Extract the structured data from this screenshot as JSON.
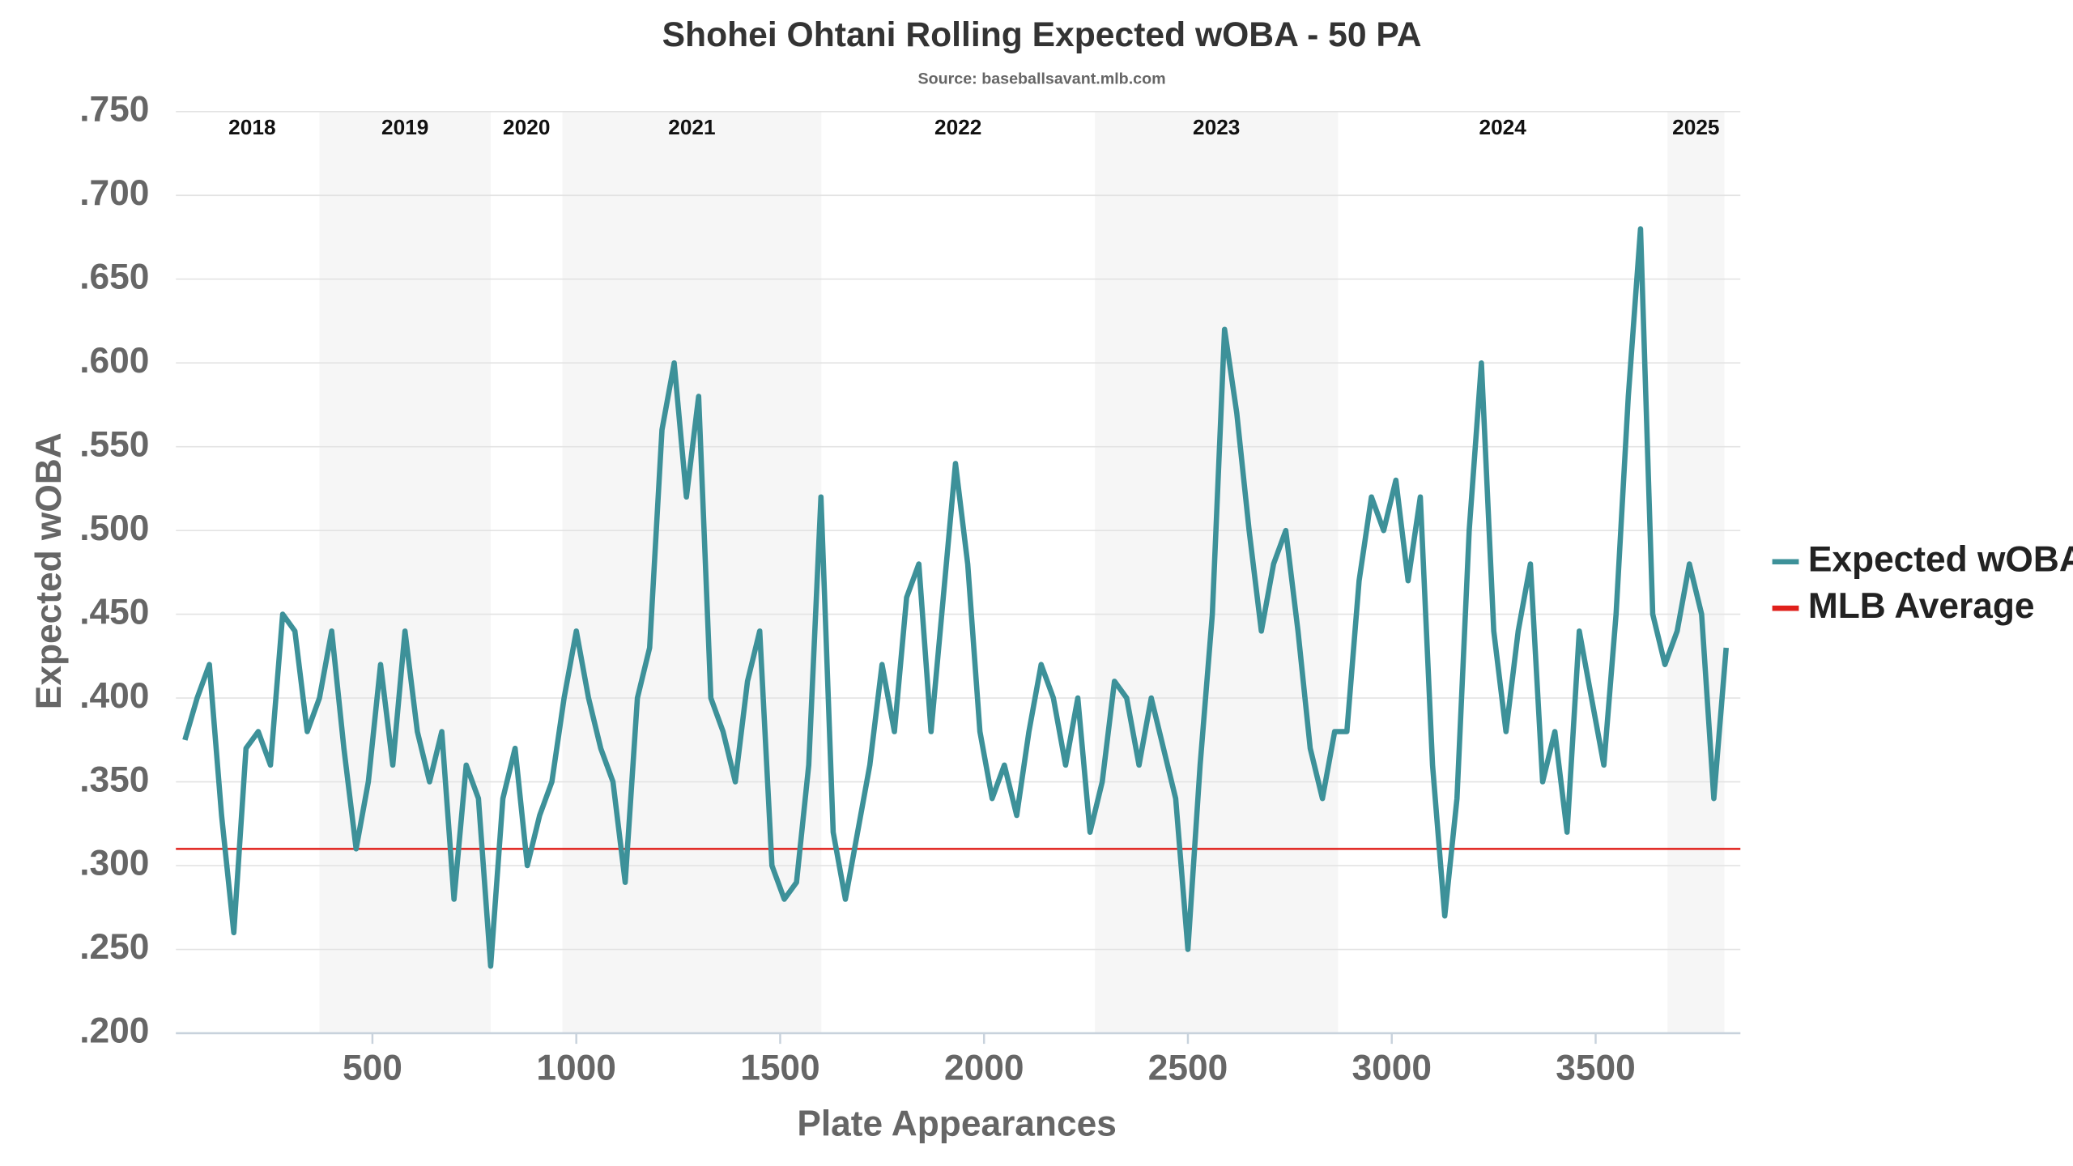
{
  "chart_data": {
    "type": "line",
    "title": "Shohei Ohtani Rolling Expected wOBA - 50 PA",
    "subtitle": "Source: baseballsavant.mlb.com",
    "x_label": "Plate Appearances",
    "y_label": "Expected wOBA",
    "xlim": [
      18,
      3855
    ],
    "ylim": [
      0.2,
      0.75
    ],
    "xticks": [
      500,
      1000,
      1500,
      2000,
      2500,
      3000,
      3500
    ],
    "yticks": [
      {
        "value": 0.2,
        "label": ".200"
      },
      {
        "value": 0.25,
        "label": ".250"
      },
      {
        "value": 0.3,
        "label": ".300"
      },
      {
        "value": 0.35,
        "label": ".350"
      },
      {
        "value": 0.4,
        "label": ".400"
      },
      {
        "value": 0.45,
        "label": ".450"
      },
      {
        "value": 0.5,
        "label": ".500"
      },
      {
        "value": 0.55,
        "label": ".550"
      },
      {
        "value": 0.6,
        "label": ".600"
      },
      {
        "value": 0.65,
        "label": ".650"
      },
      {
        "value": 0.7,
        "label": ".700"
      },
      {
        "value": 0.75,
        "label": ".750"
      }
    ],
    "grid": true,
    "legend": "right",
    "seasons": [
      {
        "label": "2018",
        "start": 40,
        "end": 370
      },
      {
        "label": "2019",
        "start": 370,
        "end": 790
      },
      {
        "label": "2020",
        "start": 790,
        "end": 966
      },
      {
        "label": "2021",
        "start": 966,
        "end": 1601
      },
      {
        "label": "2022",
        "start": 1601,
        "end": 2272
      },
      {
        "label": "2023",
        "start": 2272,
        "end": 2868
      },
      {
        "label": "2024",
        "start": 2868,
        "end": 3676
      },
      {
        "label": "2025",
        "start": 3676,
        "end": 3816
      }
    ],
    "x": [
      40,
      70,
      100,
      130,
      160,
      190,
      220,
      250,
      280,
      310,
      340,
      370,
      400,
      430,
      460,
      490,
      520,
      550,
      580,
      610,
      640,
      670,
      700,
      730,
      760,
      790,
      820,
      850,
      880,
      910,
      940,
      970,
      1000,
      1030,
      1060,
      1090,
      1120,
      1150,
      1180,
      1210,
      1240,
      1270,
      1300,
      1330,
      1360,
      1390,
      1420,
      1450,
      1480,
      1510,
      1540,
      1570,
      1600,
      1630,
      1660,
      1690,
      1720,
      1750,
      1780,
      1810,
      1840,
      1870,
      1900,
      1930,
      1960,
      1990,
      2020,
      2050,
      2080,
      2110,
      2140,
      2170,
      2200,
      2230,
      2260,
      2290,
      2320,
      2350,
      2380,
      2410,
      2440,
      2470,
      2500,
      2530,
      2560,
      2590,
      2620,
      2650,
      2680,
      2710,
      2740,
      2770,
      2800,
      2830,
      2860,
      2890,
      2920,
      2950,
      2980,
      3010,
      3040,
      3070,
      3100,
      3130,
      3160,
      3190,
      3220,
      3250,
      3280,
      3310,
      3340,
      3370,
      3400,
      3430,
      3460,
      3490,
      3520,
      3550,
      3580,
      3610,
      3640,
      3670,
      3700,
      3730,
      3760,
      3790,
      3820
    ],
    "series": [
      {
        "name": "Expected wOBA",
        "color": "#3d9199",
        "values": [
          0.375,
          0.4,
          0.42,
          0.33,
          0.26,
          0.37,
          0.38,
          0.36,
          0.45,
          0.44,
          0.38,
          0.4,
          0.44,
          0.37,
          0.31,
          0.35,
          0.42,
          0.36,
          0.44,
          0.38,
          0.35,
          0.38,
          0.28,
          0.36,
          0.34,
          0.24,
          0.34,
          0.37,
          0.3,
          0.33,
          0.35,
          0.4,
          0.44,
          0.4,
          0.37,
          0.35,
          0.29,
          0.4,
          0.43,
          0.56,
          0.6,
          0.52,
          0.58,
          0.4,
          0.38,
          0.35,
          0.41,
          0.44,
          0.3,
          0.28,
          0.29,
          0.36,
          0.52,
          0.32,
          0.28,
          0.32,
          0.36,
          0.42,
          0.38,
          0.46,
          0.48,
          0.38,
          0.46,
          0.54,
          0.48,
          0.38,
          0.34,
          0.36,
          0.33,
          0.38,
          0.42,
          0.4,
          0.36,
          0.4,
          0.32,
          0.35,
          0.41,
          0.4,
          0.36,
          0.4,
          0.37,
          0.34,
          0.25,
          0.36,
          0.45,
          0.62,
          0.57,
          0.5,
          0.44,
          0.48,
          0.5,
          0.44,
          0.37,
          0.34,
          0.38,
          0.38,
          0.47,
          0.52,
          0.5,
          0.53,
          0.47,
          0.52,
          0.36,
          0.27,
          0.34,
          0.5,
          0.6,
          0.44,
          0.38,
          0.44,
          0.48,
          0.35,
          0.38,
          0.32,
          0.44,
          0.4,
          0.36,
          0.45,
          0.58,
          0.68,
          0.45,
          0.42,
          0.44,
          0.48,
          0.45,
          0.34,
          0.43
        ]
      }
    ],
    "reference_lines": [
      {
        "name": "MLB Average",
        "color": "#e0201b",
        "value": 0.31
      }
    ]
  }
}
